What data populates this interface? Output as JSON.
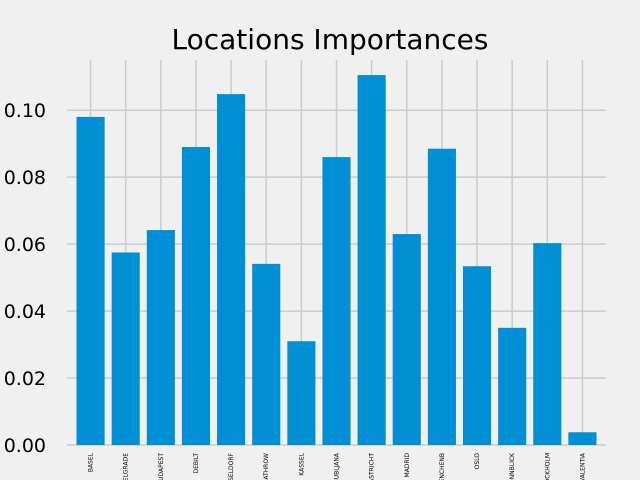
{
  "chart_data": {
    "type": "bar",
    "title": "Locations Importances",
    "xlabel": "",
    "ylabel": "",
    "categories": [
      "BASEL",
      "BELGRADE",
      "BUDAPEST",
      "DEBILT",
      "DUSSELDORF",
      "HEATHROW",
      "KASSEL",
      "LJUBLJANA",
      "MAASTRICHT",
      "MADRID",
      "MUENCHENB",
      "OSLO",
      "SONNBLICK",
      "STOCKHOLM",
      "VALENTIA"
    ],
    "values": [
      0.098,
      0.0575,
      0.0642,
      0.089,
      0.1048,
      0.0541,
      0.031,
      0.086,
      0.1105,
      0.063,
      0.0885,
      0.0534,
      0.035,
      0.0603,
      0.0038
    ],
    "ylim": [
      0,
      0.115
    ],
    "yticks": [
      "0.00",
      "0.02",
      "0.04",
      "0.06",
      "0.08",
      "0.10"
    ],
    "grid": true,
    "bar_color": "#008fd5",
    "grid_color": "#cbcbcb",
    "background": "#f0f0f0"
  }
}
